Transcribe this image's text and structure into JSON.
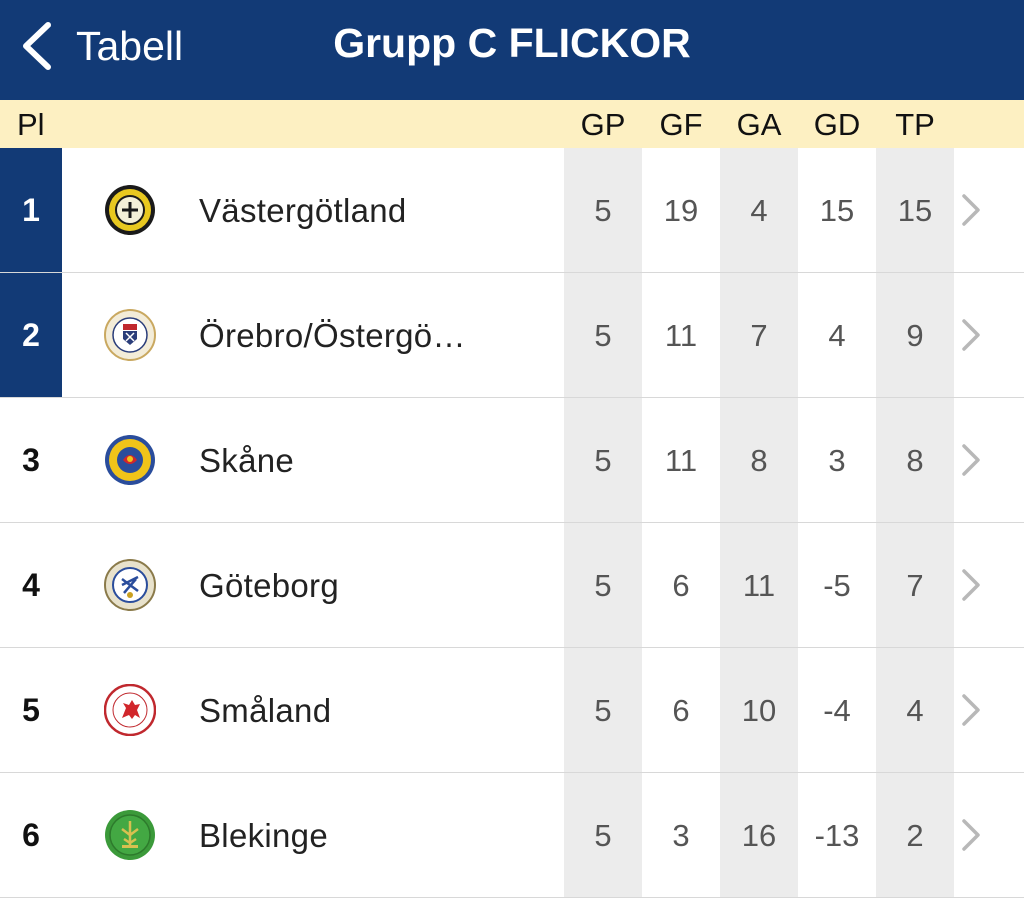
{
  "nav": {
    "back_label": "Tabell",
    "title": "Grupp C FLICKOR"
  },
  "columns": {
    "position": "Pl",
    "stats": [
      "GP",
      "GF",
      "GA",
      "GD",
      "TP"
    ]
  },
  "colors": {
    "navbar": "#123a76",
    "header": "#fdf0c2",
    "highlight": "#123a76",
    "stripe": "#ececec"
  },
  "rows": [
    {
      "pos": "1",
      "team": "Västergötland",
      "gp": "5",
      "gf": "19",
      "ga": "4",
      "gd": "15",
      "tp": "15",
      "logo": "vastergotland-crest-icon",
      "highlighted": true
    },
    {
      "pos": "2",
      "team": "Örebro/Östergö…",
      "gp": "5",
      "gf": "11",
      "ga": "7",
      "gd": "4",
      "tp": "9",
      "logo": "orebro-ostergotland-crest-icon",
      "highlighted": true
    },
    {
      "pos": "3",
      "team": "Skåne",
      "gp": "5",
      "gf": "11",
      "ga": "8",
      "gd": "3",
      "tp": "8",
      "logo": "skane-crest-icon",
      "highlighted": false
    },
    {
      "pos": "4",
      "team": "Göteborg",
      "gp": "5",
      "gf": "6",
      "ga": "11",
      "gd": "-5",
      "tp": "7",
      "logo": "goteborg-crest-icon",
      "highlighted": false
    },
    {
      "pos": "5",
      "team": "Småland",
      "gp": "5",
      "gf": "6",
      "ga": "10",
      "gd": "-4",
      "tp": "4",
      "logo": "smaland-crest-icon",
      "highlighted": false
    },
    {
      "pos": "6",
      "team": "Blekinge",
      "gp": "5",
      "gf": "3",
      "ga": "16",
      "gd": "-13",
      "tp": "2",
      "logo": "blekinge-crest-icon",
      "highlighted": false
    }
  ]
}
